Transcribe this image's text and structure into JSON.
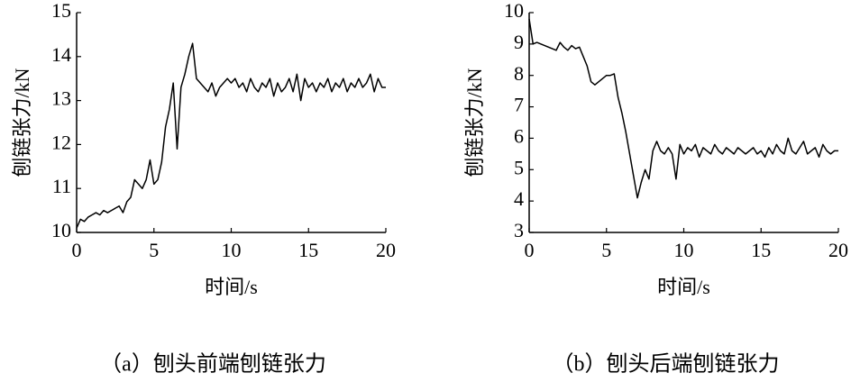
{
  "chart_data": [
    {
      "type": "line",
      "caption": "（a）刨头前端刨链张力",
      "y_label": "刨链张力/kN",
      "x_label": "时间/s",
      "x": [
        0,
        0.25,
        0.5,
        0.75,
        1,
        1.25,
        1.5,
        1.75,
        2,
        2.25,
        2.5,
        2.75,
        3,
        3.25,
        3.5,
        3.75,
        4,
        4.25,
        4.5,
        4.75,
        5,
        5.25,
        5.5,
        5.75,
        6,
        6.25,
        6.5,
        6.75,
        7,
        7.25,
        7.5,
        7.75,
        8,
        8.25,
        8.5,
        8.75,
        9,
        9.25,
        9.5,
        9.75,
        10,
        10.25,
        10.5,
        10.75,
        11,
        11.25,
        11.5,
        11.75,
        12,
        12.25,
        12.5,
        12.75,
        13,
        13.25,
        13.5,
        13.75,
        14,
        14.25,
        14.5,
        14.75,
        15,
        15.25,
        15.5,
        15.75,
        16,
        16.25,
        16.5,
        16.75,
        17,
        17.25,
        17.5,
        17.75,
        18,
        18.25,
        18.5,
        18.75,
        19,
        19.25,
        19.5,
        19.75,
        20
      ],
      "series": [
        {
          "color": "#000000",
          "values": [
            10.1,
            10.3,
            10.25,
            10.35,
            10.4,
            10.45,
            10.4,
            10.5,
            10.45,
            10.5,
            10.55,
            10.6,
            10.45,
            10.7,
            10.8,
            11.2,
            11.1,
            11.0,
            11.2,
            11.65,
            11.1,
            11.2,
            11.6,
            12.4,
            12.8,
            13.4,
            11.9,
            13.3,
            13.6,
            14.0,
            14.3,
            13.5,
            13.4,
            13.3,
            13.2,
            13.4,
            13.1,
            13.3,
            13.4,
            13.5,
            13.4,
            13.5,
            13.3,
            13.4,
            13.2,
            13.5,
            13.3,
            13.2,
            13.4,
            13.3,
            13.5,
            13.1,
            13.4,
            13.2,
            13.3,
            13.5,
            13.2,
            13.6,
            13.0,
            13.5,
            13.3,
            13.4,
            13.2,
            13.4,
            13.3,
            13.5,
            13.2,
            13.4,
            13.3,
            13.5,
            13.2,
            13.4,
            13.3,
            13.5,
            13.3,
            13.4,
            13.6,
            13.2,
            13.5,
            13.3,
            13.3
          ]
        }
      ],
      "xlim": [
        0,
        20
      ],
      "ylim": [
        10,
        15
      ],
      "xticks": [
        0,
        5,
        10,
        15,
        20
      ],
      "yticks": [
        10,
        11,
        12,
        13,
        14,
        15
      ]
    },
    {
      "type": "line",
      "caption": "（b）刨头后端刨链张力",
      "y_label": "刨链张力/kN",
      "x_label": "时间/s",
      "x": [
        0,
        0.25,
        0.5,
        0.75,
        1,
        1.25,
        1.5,
        1.75,
        2,
        2.25,
        2.5,
        2.75,
        3,
        3.25,
        3.5,
        3.75,
        4,
        4.25,
        4.5,
        4.75,
        5,
        5.25,
        5.5,
        5.75,
        6,
        6.25,
        6.5,
        6.75,
        7,
        7.25,
        7.5,
        7.75,
        8,
        8.25,
        8.5,
        8.75,
        9,
        9.25,
        9.5,
        9.75,
        10,
        10.25,
        10.5,
        10.75,
        11,
        11.25,
        11.5,
        11.75,
        12,
        12.25,
        12.5,
        12.75,
        13,
        13.25,
        13.5,
        13.75,
        14,
        14.25,
        14.5,
        14.75,
        15,
        15.25,
        15.5,
        15.75,
        16,
        16.25,
        16.5,
        16.75,
        17,
        17.25,
        17.5,
        17.75,
        18,
        18.25,
        18.5,
        18.75,
        19,
        19.25,
        19.5,
        19.75,
        20
      ],
      "series": [
        {
          "color": "#000000",
          "values": [
            9.8,
            9.0,
            9.05,
            9.0,
            8.95,
            8.9,
            8.85,
            8.8,
            9.05,
            8.9,
            8.8,
            8.95,
            8.85,
            8.9,
            8.6,
            8.3,
            7.8,
            7.7,
            7.8,
            7.9,
            8.0,
            8.0,
            8.05,
            7.3,
            6.8,
            6.2,
            5.5,
            4.8,
            4.1,
            4.6,
            5.0,
            4.7,
            5.6,
            5.9,
            5.6,
            5.5,
            5.7,
            5.5,
            4.7,
            5.8,
            5.5,
            5.7,
            5.6,
            5.8,
            5.4,
            5.7,
            5.6,
            5.5,
            5.8,
            5.6,
            5.5,
            5.7,
            5.6,
            5.5,
            5.7,
            5.6,
            5.5,
            5.6,
            5.7,
            5.5,
            5.6,
            5.4,
            5.7,
            5.5,
            5.8,
            5.6,
            5.5,
            6.0,
            5.6,
            5.5,
            5.7,
            5.9,
            5.5,
            5.6,
            5.7,
            5.4,
            5.8,
            5.6,
            5.5,
            5.6,
            5.6
          ]
        }
      ],
      "xlim": [
        0,
        20
      ],
      "ylim": [
        3,
        10
      ],
      "xticks": [
        0,
        5,
        10,
        15,
        20
      ],
      "yticks": [
        3,
        4,
        5,
        6,
        7,
        8,
        9,
        10
      ]
    }
  ]
}
